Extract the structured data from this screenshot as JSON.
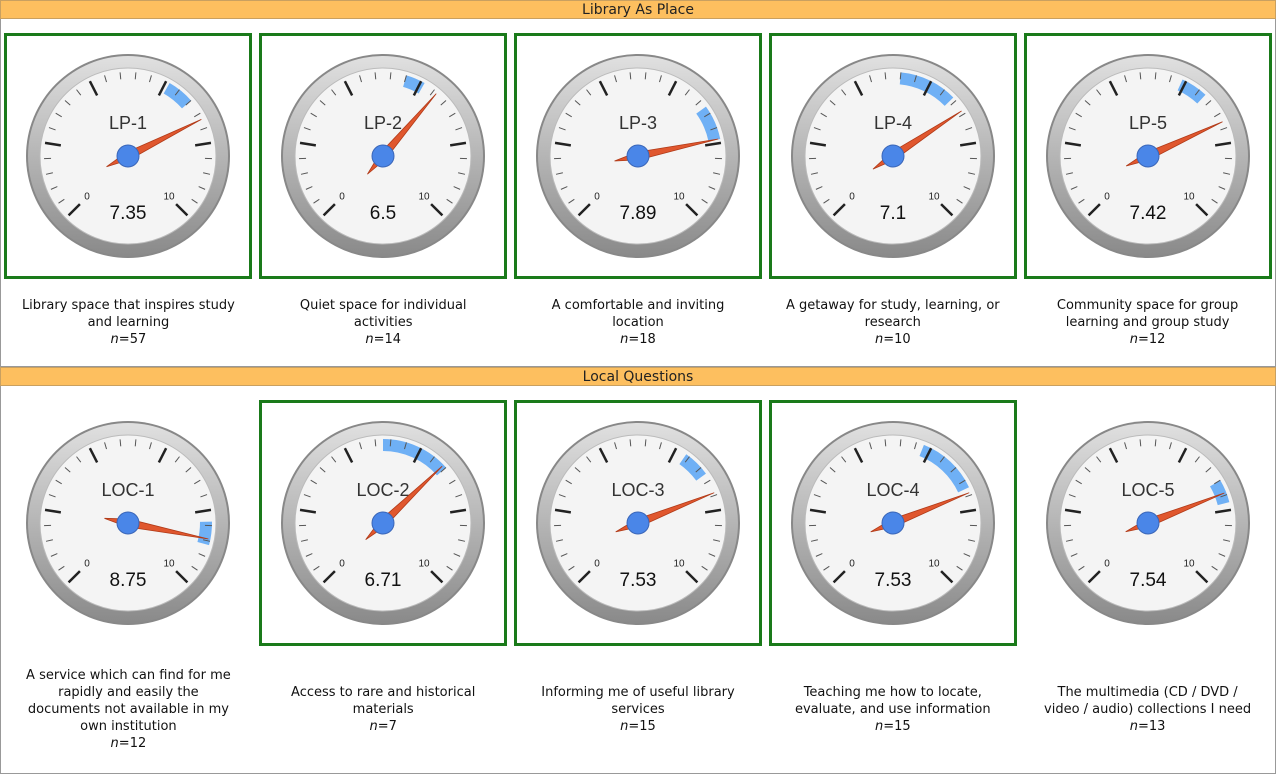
{
  "gauge_scale": {
    "lim": [
      0,
      10
    ],
    "ticks": [
      0,
      10
    ],
    "major_ticks": [
      0,
      2,
      4,
      6,
      8,
      10
    ]
  },
  "sections": [
    {
      "title": "Library As Place",
      "charts": [
        {
          "type": "gauge",
          "title": "LP-1",
          "value": 7.35,
          "band": [
            6.1,
            6.8
          ],
          "highlight": true,
          "description": "Library space that inspires study and learning",
          "n": "n=57"
        },
        {
          "type": "gauge",
          "title": "LP-2",
          "value": 6.5,
          "band": [
            5.6,
            6.1
          ],
          "highlight": true,
          "description": "Quiet space for individual activities",
          "n": "n=14"
        },
        {
          "type": "gauge",
          "title": "LP-3",
          "value": 7.89,
          "band": [
            7.0,
            7.9
          ],
          "highlight": true,
          "description": "A comfortable and inviting location",
          "n": "n=18"
        },
        {
          "type": "gauge",
          "title": "LP-4",
          "value": 7.1,
          "band": [
            5.2,
            6.7
          ],
          "highlight": true,
          "description": "A getaway for study, learning, or research",
          "n": "n=10"
        },
        {
          "type": "gauge",
          "title": "LP-5",
          "value": 7.42,
          "band": [
            5.9,
            6.6
          ],
          "highlight": true,
          "description": "Community space for group learning and group study",
          "n": "n=12"
        }
      ]
    },
    {
      "title": "Local Questions",
      "charts": [
        {
          "type": "gauge",
          "title": "LOC-1",
          "value": 8.75,
          "band": [
            8.3,
            8.9
          ],
          "highlight": false,
          "description": "A service which can find for me rapidly and easily the documents not available in my own institution",
          "n": "n=12"
        },
        {
          "type": "gauge",
          "title": "LOC-2",
          "value": 6.71,
          "band": [
            5.0,
            6.8
          ],
          "highlight": true,
          "description": "Access to rare and historical materials",
          "n": "n=7"
        },
        {
          "type": "gauge",
          "title": "LOC-3",
          "value": 7.53,
          "band": [
            6.3,
            7.0
          ],
          "highlight": true,
          "description": "Informing me of useful library services",
          "n": "n=15"
        },
        {
          "type": "gauge",
          "title": "LOC-4",
          "value": 7.53,
          "band": [
            5.8,
            7.4
          ],
          "highlight": true,
          "description": "Teaching me how to locate, evaluate, and use information",
          "n": "n=15"
        },
        {
          "type": "gauge",
          "title": "LOC-5",
          "value": 7.54,
          "band": [
            7.2,
            7.8
          ],
          "highlight": false,
          "description": "The multimedia (CD / DVD / video / audio) collections I need",
          "n": "n=13"
        }
      ]
    }
  ]
}
